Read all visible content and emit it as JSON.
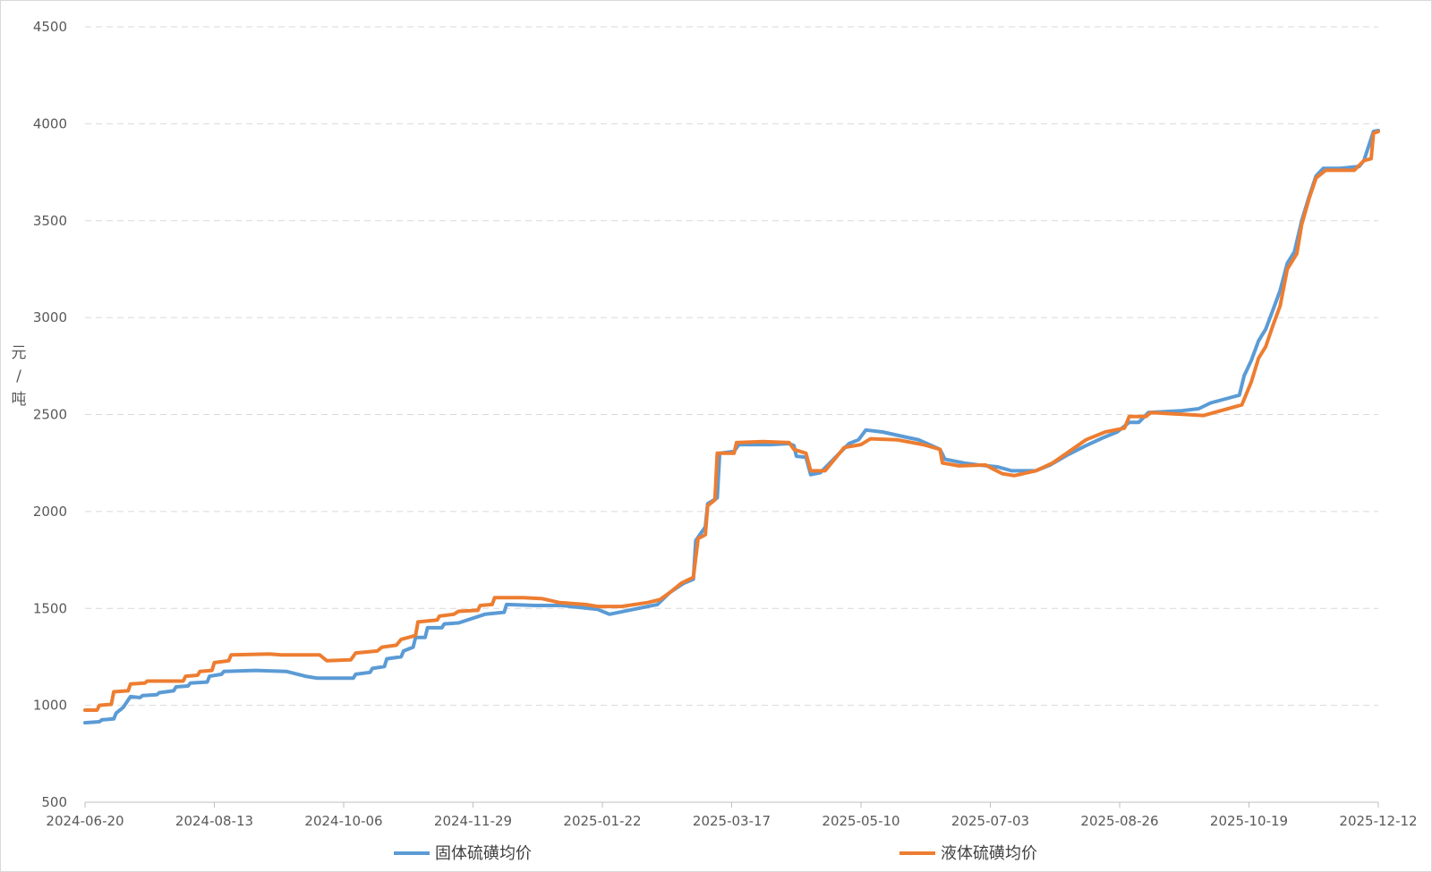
{
  "chart_data": {
    "type": "line",
    "title": "",
    "xlabel": "",
    "ylabel": "元/吨",
    "ylabel_chars": [
      "元",
      "/",
      "吨"
    ],
    "ylim": [
      500,
      4500
    ],
    "yticks": [
      500,
      1000,
      1500,
      2000,
      2500,
      3000,
      3500,
      4000,
      4500
    ],
    "ytick_labels": [
      "500",
      "1000",
      "1500",
      "2000",
      "2500",
      "3000",
      "3500",
      "4000",
      "4500"
    ],
    "xlim": [
      "2024-06-20",
      "2025-12-12"
    ],
    "xticks": [
      "2024-06-20",
      "2024-08-13",
      "2024-10-06",
      "2024-11-29",
      "2025-01-22",
      "2025-03-17",
      "2025-05-10",
      "2025-07-03",
      "2025-08-26",
      "2025-10-19",
      "2025-12-12"
    ],
    "grid": "horizontal dashed",
    "legend_position": "bottom",
    "series": [
      {
        "name": "固体硫磺均价",
        "color": "#5b9bd5",
        "points": [
          [
            "2024-06-20",
            910
          ],
          [
            "2024-06-26",
            915
          ],
          [
            "2024-06-27",
            925
          ],
          [
            "2024-07-02",
            930
          ],
          [
            "2024-07-03",
            960
          ],
          [
            "2024-07-06",
            990
          ],
          [
            "2024-07-09",
            1045
          ],
          [
            "2024-07-13",
            1040
          ],
          [
            "2024-07-14",
            1050
          ],
          [
            "2024-07-20",
            1055
          ],
          [
            "2024-07-21",
            1065
          ],
          [
            "2024-07-27",
            1075
          ],
          [
            "2024-07-28",
            1095
          ],
          [
            "2024-08-02",
            1100
          ],
          [
            "2024-08-03",
            1115
          ],
          [
            "2024-08-10",
            1120
          ],
          [
            "2024-08-11",
            1150
          ],
          [
            "2024-08-16",
            1160
          ],
          [
            "2024-08-17",
            1175
          ],
          [
            "2024-08-30",
            1180
          ],
          [
            "2024-09-12",
            1175
          ],
          [
            "2024-09-20",
            1150
          ],
          [
            "2024-09-25",
            1140
          ],
          [
            "2024-10-05",
            1140
          ],
          [
            "2024-10-10",
            1140
          ],
          [
            "2024-10-11",
            1160
          ],
          [
            "2024-10-17",
            1170
          ],
          [
            "2024-10-18",
            1190
          ],
          [
            "2024-10-23",
            1200
          ],
          [
            "2024-10-24",
            1240
          ],
          [
            "2024-10-30",
            1250
          ],
          [
            "2024-10-31",
            1280
          ],
          [
            "2024-11-04",
            1300
          ],
          [
            "2024-11-05",
            1350
          ],
          [
            "2024-11-09",
            1350
          ],
          [
            "2024-11-10",
            1400
          ],
          [
            "2024-11-16",
            1400
          ],
          [
            "2024-11-17",
            1420
          ],
          [
            "2024-11-23",
            1425
          ],
          [
            "2024-12-04",
            1470
          ],
          [
            "2024-12-12",
            1480
          ],
          [
            "2024-12-13",
            1520
          ],
          [
            "2024-12-25",
            1515
          ],
          [
            "2025-01-05",
            1515
          ],
          [
            "2025-01-20",
            1495
          ],
          [
            "2025-01-23",
            1480
          ],
          [
            "2025-01-25",
            1470
          ],
          [
            "2025-02-10",
            1510
          ],
          [
            "2025-02-14",
            1520
          ],
          [
            "2025-02-19",
            1580
          ],
          [
            "2025-02-25",
            1630
          ],
          [
            "2025-03-01",
            1650
          ],
          [
            "2025-03-02",
            1850
          ],
          [
            "2025-03-06",
            1920
          ],
          [
            "2025-03-07",
            2040
          ],
          [
            "2025-03-11",
            2070
          ],
          [
            "2025-03-12",
            2300
          ],
          [
            "2025-03-18",
            2310
          ],
          [
            "2025-03-20",
            2345
          ],
          [
            "2025-04-02",
            2345
          ],
          [
            "2025-04-10",
            2350
          ],
          [
            "2025-04-12",
            2340
          ],
          [
            "2025-04-13",
            2285
          ],
          [
            "2025-04-17",
            2280
          ],
          [
            "2025-04-19",
            2190
          ],
          [
            "2025-04-23",
            2200
          ],
          [
            "2025-05-05",
            2350
          ],
          [
            "2025-05-09",
            2370
          ],
          [
            "2025-05-12",
            2420
          ],
          [
            "2025-05-19",
            2410
          ],
          [
            "2025-05-30",
            2380
          ],
          [
            "2025-06-03",
            2370
          ],
          [
            "2025-06-12",
            2320
          ],
          [
            "2025-06-14",
            2270
          ],
          [
            "2025-06-22",
            2250
          ],
          [
            "2025-06-28",
            2240
          ],
          [
            "2025-07-06",
            2230
          ],
          [
            "2025-07-12",
            2210
          ],
          [
            "2025-07-22",
            2210
          ],
          [
            "2025-07-28",
            2240
          ],
          [
            "2025-08-04",
            2290
          ],
          [
            "2025-08-12",
            2340
          ],
          [
            "2025-08-19",
            2380
          ],
          [
            "2025-08-25",
            2410
          ],
          [
            "2025-08-30",
            2460
          ],
          [
            "2025-09-03",
            2460
          ],
          [
            "2025-09-07",
            2510
          ],
          [
            "2025-09-21",
            2520
          ],
          [
            "2025-09-28",
            2530
          ],
          [
            "2025-10-03",
            2560
          ],
          [
            "2025-10-12",
            2590
          ],
          [
            "2025-10-15",
            2600
          ],
          [
            "2025-10-17",
            2700
          ],
          [
            "2025-10-20",
            2780
          ],
          [
            "2025-10-23",
            2880
          ],
          [
            "2025-10-26",
            2940
          ],
          [
            "2025-10-29",
            3040
          ],
          [
            "2025-11-01",
            3140
          ],
          [
            "2025-11-04",
            3280
          ],
          [
            "2025-11-07",
            3340
          ],
          [
            "2025-11-10",
            3500
          ],
          [
            "2025-11-13",
            3620
          ],
          [
            "2025-11-16",
            3730
          ],
          [
            "2025-11-19",
            3770
          ],
          [
            "2025-11-26",
            3770
          ],
          [
            "2025-12-04",
            3780
          ],
          [
            "2025-12-06",
            3810
          ],
          [
            "2025-12-10",
            3960
          ],
          [
            "2025-12-12",
            3965
          ]
        ]
      },
      {
        "name": "液体硫磺均价",
        "color": "#ed7d31",
        "points": [
          [
            "2024-06-20",
            975
          ],
          [
            "2024-06-25",
            975
          ],
          [
            "2024-06-26",
            1000
          ],
          [
            "2024-07-01",
            1005
          ],
          [
            "2024-07-02",
            1070
          ],
          [
            "2024-07-08",
            1075
          ],
          [
            "2024-07-09",
            1110
          ],
          [
            "2024-07-15",
            1115
          ],
          [
            "2024-07-16",
            1125
          ],
          [
            "2024-07-31",
            1125
          ],
          [
            "2024-08-01",
            1150
          ],
          [
            "2024-08-06",
            1155
          ],
          [
            "2024-08-07",
            1175
          ],
          [
            "2024-08-12",
            1180
          ],
          [
            "2024-08-13",
            1220
          ],
          [
            "2024-08-19",
            1230
          ],
          [
            "2024-08-20",
            1260
          ],
          [
            "2024-09-05",
            1265
          ],
          [
            "2024-09-10",
            1260
          ],
          [
            "2024-09-26",
            1260
          ],
          [
            "2024-09-29",
            1230
          ],
          [
            "2024-10-09",
            1235
          ],
          [
            "2024-10-11",
            1270
          ],
          [
            "2024-10-20",
            1280
          ],
          [
            "2024-10-22",
            1300
          ],
          [
            "2024-10-28",
            1310
          ],
          [
            "2024-10-30",
            1340
          ],
          [
            "2024-11-05",
            1360
          ],
          [
            "2024-11-06",
            1430
          ],
          [
            "2024-11-14",
            1440
          ],
          [
            "2024-11-15",
            1460
          ],
          [
            "2024-11-21",
            1470
          ],
          [
            "2024-11-23",
            1485
          ],
          [
            "2024-12-01",
            1490
          ],
          [
            "2024-12-02",
            1515
          ],
          [
            "2024-12-07",
            1520
          ],
          [
            "2024-12-08",
            1555
          ],
          [
            "2024-12-20",
            1555
          ],
          [
            "2024-12-28",
            1550
          ],
          [
            "2025-01-04",
            1530
          ],
          [
            "2025-01-15",
            1520
          ],
          [
            "2025-01-20",
            1510
          ],
          [
            "2025-01-30",
            1510
          ],
          [
            "2025-02-10",
            1530
          ],
          [
            "2025-02-15",
            1545
          ],
          [
            "2025-02-19",
            1580
          ],
          [
            "2025-02-24",
            1630
          ],
          [
            "2025-03-01",
            1660
          ],
          [
            "2025-03-03",
            1860
          ],
          [
            "2025-03-06",
            1880
          ],
          [
            "2025-03-07",
            2030
          ],
          [
            "2025-03-10",
            2060
          ],
          [
            "2025-03-11",
            2300
          ],
          [
            "2025-03-18",
            2300
          ],
          [
            "2025-03-19",
            2355
          ],
          [
            "2025-03-30",
            2360
          ],
          [
            "2025-04-10",
            2355
          ],
          [
            "2025-04-12",
            2320
          ],
          [
            "2025-04-17",
            2300
          ],
          [
            "2025-04-19",
            2210
          ],
          [
            "2025-04-25",
            2210
          ],
          [
            "2025-05-03",
            2330
          ],
          [
            "2025-05-10",
            2345
          ],
          [
            "2025-05-14",
            2375
          ],
          [
            "2025-05-25",
            2370
          ],
          [
            "2025-06-05",
            2345
          ],
          [
            "2025-06-12",
            2320
          ],
          [
            "2025-06-13",
            2250
          ],
          [
            "2025-06-20",
            2235
          ],
          [
            "2025-07-01",
            2240
          ],
          [
            "2025-07-04",
            2220
          ],
          [
            "2025-07-08",
            2195
          ],
          [
            "2025-07-13",
            2185
          ],
          [
            "2025-07-22",
            2210
          ],
          [
            "2025-07-29",
            2250
          ],
          [
            "2025-08-05",
            2310
          ],
          [
            "2025-08-12",
            2370
          ],
          [
            "2025-08-20",
            2410
          ],
          [
            "2025-08-28",
            2430
          ],
          [
            "2025-08-30",
            2490
          ],
          [
            "2025-09-06",
            2490
          ],
          [
            "2025-09-08",
            2510
          ],
          [
            "2025-09-15",
            2505
          ],
          [
            "2025-09-23",
            2500
          ],
          [
            "2025-09-30",
            2495
          ],
          [
            "2025-10-16",
            2550
          ],
          [
            "2025-10-20",
            2670
          ],
          [
            "2025-10-23",
            2790
          ],
          [
            "2025-10-26",
            2850
          ],
          [
            "2025-10-29",
            2960
          ],
          [
            "2025-11-01",
            3060
          ],
          [
            "2025-11-04",
            3250
          ],
          [
            "2025-11-08",
            3330
          ],
          [
            "2025-11-10",
            3480
          ],
          [
            "2025-11-13",
            3610
          ],
          [
            "2025-11-16",
            3720
          ],
          [
            "2025-11-20",
            3760
          ],
          [
            "2025-12-02",
            3760
          ],
          [
            "2025-12-06",
            3810
          ],
          [
            "2025-12-09",
            3820
          ],
          [
            "2025-12-10",
            3950
          ],
          [
            "2025-12-12",
            3960
          ]
        ]
      }
    ]
  }
}
